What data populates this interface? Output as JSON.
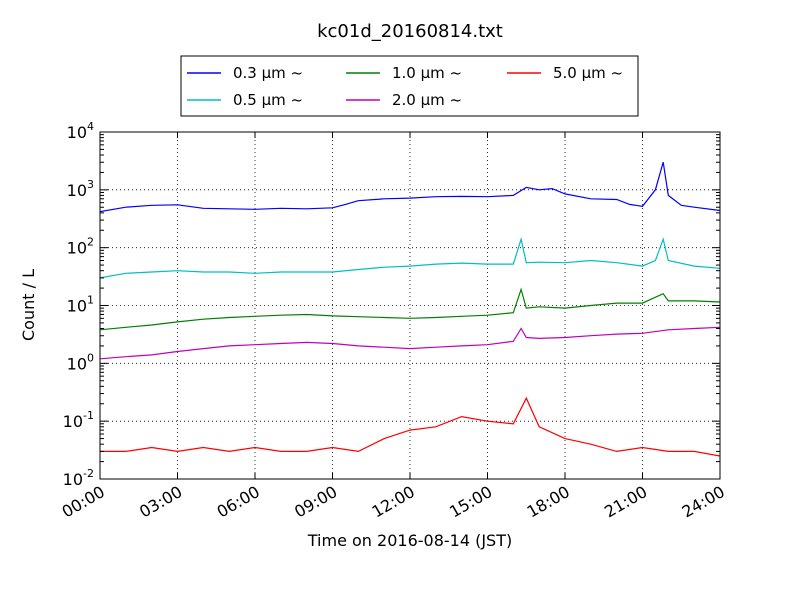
{
  "chart_data": {
    "type": "line",
    "title": "kc01d_20160814.txt",
    "xlabel": "Time on 2016-08-14 (JST)",
    "ylabel": "Count / L",
    "yscale": "log",
    "ylim": [
      0.01,
      10000
    ],
    "xlim": [
      "00:00",
      "24:00"
    ],
    "x_ticks": [
      "00:00",
      "03:00",
      "06:00",
      "09:00",
      "12:00",
      "15:00",
      "18:00",
      "21:00",
      "24:00"
    ],
    "y_ticks": [
      {
        "base": "10",
        "exp": "-2"
      },
      {
        "base": "10",
        "exp": "-1"
      },
      {
        "base": "10",
        "exp": "0"
      },
      {
        "base": "10",
        "exp": "1"
      },
      {
        "base": "10",
        "exp": "2"
      },
      {
        "base": "10",
        "exp": "3"
      },
      {
        "base": "10",
        "exp": "4"
      }
    ],
    "grid": true,
    "legend_position": "top",
    "series": [
      {
        "name": "0.3 μm ~",
        "color": "#0000ff",
        "points": [
          [
            0,
            420
          ],
          [
            1,
            500
          ],
          [
            2,
            540
          ],
          [
            3,
            550
          ],
          [
            4,
            480
          ],
          [
            5,
            470
          ],
          [
            6,
            460
          ],
          [
            7,
            480
          ],
          [
            8,
            470
          ],
          [
            9,
            490
          ],
          [
            9.5,
            560
          ],
          [
            10,
            650
          ],
          [
            11,
            700
          ],
          [
            12,
            720
          ],
          [
            13,
            760
          ],
          [
            14,
            770
          ],
          [
            15,
            760
          ],
          [
            16,
            800
          ],
          [
            16.5,
            1100
          ],
          [
            17,
            1000
          ],
          [
            17.5,
            1050
          ],
          [
            18,
            850
          ],
          [
            19,
            700
          ],
          [
            20,
            680
          ],
          [
            20.5,
            560
          ],
          [
            21,
            520
          ],
          [
            21.5,
            1000
          ],
          [
            21.8,
            3000
          ],
          [
            22,
            800
          ],
          [
            22.5,
            540
          ],
          [
            23,
            500
          ],
          [
            24,
            440
          ]
        ]
      },
      {
        "name": "0.5 μm ~",
        "color": "#00bfbf",
        "points": [
          [
            0,
            30
          ],
          [
            1,
            36
          ],
          [
            2,
            38
          ],
          [
            3,
            40
          ],
          [
            4,
            38
          ],
          [
            5,
            38
          ],
          [
            6,
            36
          ],
          [
            7,
            38
          ],
          [
            8,
            38
          ],
          [
            9,
            38
          ],
          [
            10,
            42
          ],
          [
            11,
            46
          ],
          [
            12,
            48
          ],
          [
            13,
            52
          ],
          [
            14,
            54
          ],
          [
            15,
            52
          ],
          [
            16,
            52
          ],
          [
            16.3,
            140
          ],
          [
            16.5,
            55
          ],
          [
            17,
            56
          ],
          [
            18,
            55
          ],
          [
            19,
            60
          ],
          [
            20,
            55
          ],
          [
            21,
            48
          ],
          [
            21.5,
            60
          ],
          [
            21.8,
            140
          ],
          [
            22,
            60
          ],
          [
            23,
            48
          ],
          [
            24,
            44
          ]
        ]
      },
      {
        "name": "1.0 μm ~",
        "color": "#008000",
        "points": [
          [
            0,
            3.8
          ],
          [
            1,
            4.2
          ],
          [
            2,
            4.6
          ],
          [
            3,
            5.2
          ],
          [
            4,
            5.8
          ],
          [
            5,
            6.2
          ],
          [
            6,
            6.5
          ],
          [
            7,
            6.8
          ],
          [
            8,
            7.0
          ],
          [
            9,
            6.6
          ],
          [
            10,
            6.4
          ],
          [
            11,
            6.2
          ],
          [
            12,
            6.0
          ],
          [
            13,
            6.2
          ],
          [
            14,
            6.5
          ],
          [
            15,
            6.8
          ],
          [
            16,
            7.5
          ],
          [
            16.3,
            19
          ],
          [
            16.5,
            9
          ],
          [
            17,
            9.5
          ],
          [
            18,
            9.0
          ],
          [
            19,
            10
          ],
          [
            20,
            11
          ],
          [
            21,
            11
          ],
          [
            21.8,
            16
          ],
          [
            22,
            12
          ],
          [
            23,
            12
          ],
          [
            24,
            11.5
          ]
        ]
      },
      {
        "name": "2.0 μm ~",
        "color": "#bf00bf",
        "points": [
          [
            0,
            1.2
          ],
          [
            1,
            1.3
          ],
          [
            2,
            1.4
          ],
          [
            3,
            1.6
          ],
          [
            4,
            1.8
          ],
          [
            5,
            2.0
          ],
          [
            6,
            2.1
          ],
          [
            7,
            2.2
          ],
          [
            8,
            2.3
          ],
          [
            9,
            2.2
          ],
          [
            10,
            2.0
          ],
          [
            11,
            1.9
          ],
          [
            12,
            1.8
          ],
          [
            13,
            1.9
          ],
          [
            14,
            2.0
          ],
          [
            15,
            2.1
          ],
          [
            16,
            2.4
          ],
          [
            16.3,
            4.0
          ],
          [
            16.5,
            2.8
          ],
          [
            17,
            2.7
          ],
          [
            18,
            2.8
          ],
          [
            19,
            3.0
          ],
          [
            20,
            3.2
          ],
          [
            21,
            3.3
          ],
          [
            22,
            3.8
          ],
          [
            23,
            4.0
          ],
          [
            24,
            4.2
          ]
        ]
      },
      {
        "name": "5.0 μm ~",
        "color": "#ff0000",
        "points": [
          [
            0,
            0.03
          ],
          [
            1,
            0.03
          ],
          [
            2,
            0.035
          ],
          [
            3,
            0.03
          ],
          [
            4,
            0.035
          ],
          [
            5,
            0.03
          ],
          [
            6,
            0.035
          ],
          [
            7,
            0.03
          ],
          [
            8,
            0.03
          ],
          [
            9,
            0.035
          ],
          [
            10,
            0.03
          ],
          [
            11,
            0.05
          ],
          [
            12,
            0.07
          ],
          [
            13,
            0.08
          ],
          [
            14,
            0.12
          ],
          [
            15,
            0.1
          ],
          [
            16,
            0.09
          ],
          [
            16.5,
            0.25
          ],
          [
            17,
            0.08
          ],
          [
            18,
            0.05
          ],
          [
            19,
            0.04
          ],
          [
            20,
            0.03
          ],
          [
            21,
            0.035
          ],
          [
            22,
            0.03
          ],
          [
            23,
            0.03
          ],
          [
            24,
            0.025
          ]
        ]
      }
    ]
  }
}
